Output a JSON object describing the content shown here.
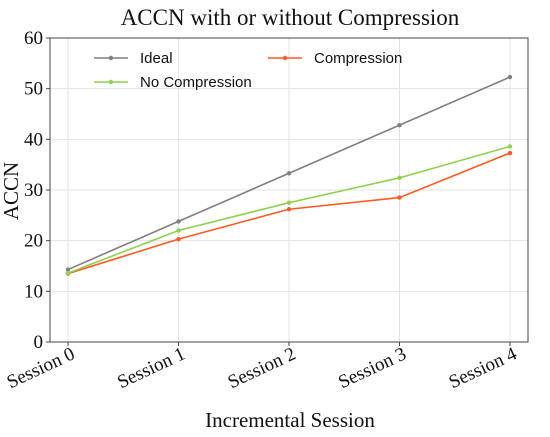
{
  "chart_data": {
    "type": "line",
    "title": "ACCN with or without Compression",
    "xlabel": "Incremental Session",
    "ylabel": "ACCN",
    "categories": [
      "Session 0",
      "Session 1",
      "Session 2",
      "Session 3",
      "Session 4"
    ],
    "ylim": [
      0,
      60
    ],
    "yticks": [
      0,
      10,
      20,
      30,
      40,
      50,
      60
    ],
    "grid": true,
    "legend_position": "top",
    "series": [
      {
        "name": "Ideal",
        "color": "#7f7f7f",
        "values": [
          14.3,
          23.8,
          33.3,
          42.8,
          52.3
        ]
      },
      {
        "name": "Compression",
        "color": "#ff5a1f",
        "values": [
          13.5,
          20.3,
          26.2,
          28.5,
          37.3
        ]
      },
      {
        "name": "No Compression",
        "color": "#8fd14f",
        "values": [
          13.6,
          22.0,
          27.5,
          32.4,
          38.6
        ]
      }
    ]
  }
}
